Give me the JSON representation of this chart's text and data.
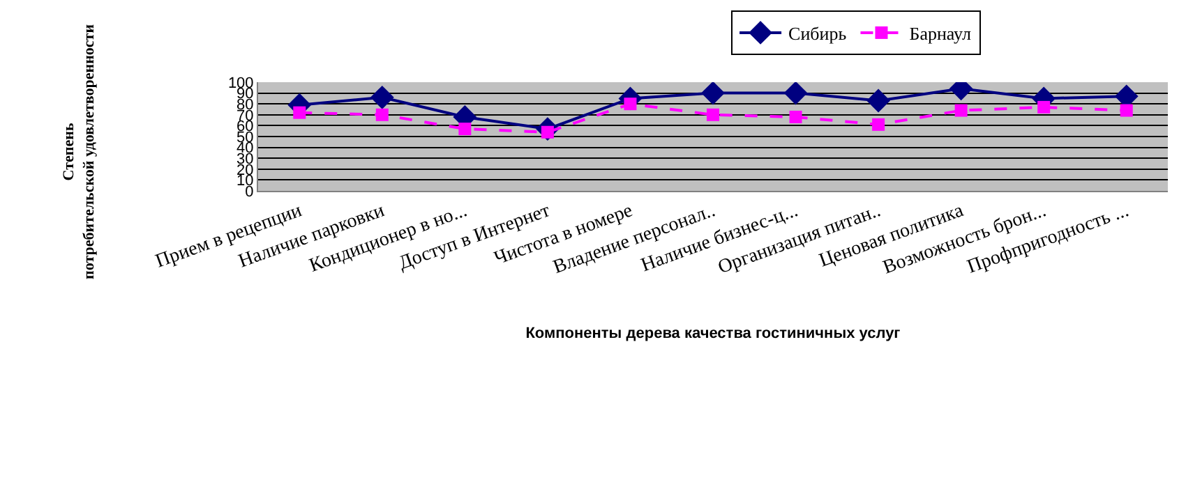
{
  "chart_data": {
    "type": "line",
    "xlabel": "Компоненты дерева качества гостиничных услуг",
    "ylabel": "Степень\nпотребительской удовлетворенности",
    "categories": [
      "Прием в рецепции",
      "Наличие парковки",
      "Кондиционер в но...",
      "Доступ в Интернет",
      "Чистота в номере",
      "Владение персонал..",
      "Наличие бизнес-ц...",
      "Организация питан..",
      "Ценовая политика",
      "Возможность брон...",
      "Профпригодность ..."
    ],
    "series": [
      {
        "name": "Сибирь",
        "color": "#000080",
        "marker": "diamond",
        "line_style": "solid",
        "values": [
          79,
          86,
          68,
          57,
          85,
          90,
          90,
          83,
          94,
          85,
          87
        ]
      },
      {
        "name": "Барнаул",
        "color": "#ff00ff",
        "marker": "square",
        "line_style": "dashed",
        "values": [
          72,
          70,
          57,
          54,
          80,
          70,
          68,
          61,
          74,
          77,
          74
        ]
      }
    ],
    "ylim": [
      0,
      100
    ],
    "yticks": [
      0,
      10,
      20,
      30,
      40,
      50,
      60,
      70,
      80,
      90,
      100
    ],
    "grid": "y",
    "legend": "top"
  }
}
